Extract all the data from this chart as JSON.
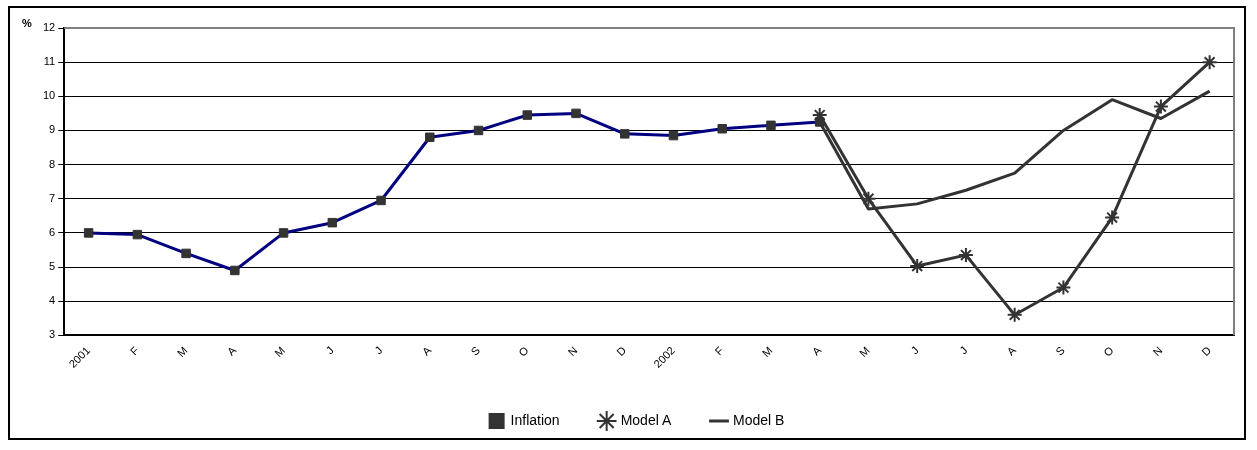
{
  "chart_data": {
    "type": "line",
    "ylabel": "%",
    "categories": [
      "2001",
      "F",
      "M",
      "A",
      "M",
      "J",
      "J",
      "A",
      "S",
      "O",
      "N",
      "D",
      "2002",
      "F",
      "M",
      "A",
      "M",
      "J",
      "J",
      "A",
      "S",
      "O",
      "N",
      "D"
    ],
    "series": [
      {
        "name": "Inflation",
        "color": "#000080",
        "marker": "square",
        "values": [
          6.0,
          5.95,
          5.4,
          4.9,
          6.0,
          6.3,
          6.95,
          8.8,
          9.0,
          9.45,
          9.5,
          8.9,
          8.85,
          9.05,
          9.15,
          9.25,
          null,
          null,
          null,
          null,
          null,
          null,
          null,
          null
        ]
      },
      {
        "name": "Model A",
        "color": "#333333",
        "marker": "cross",
        "values": [
          null,
          null,
          null,
          null,
          null,
          null,
          null,
          null,
          null,
          null,
          null,
          null,
          null,
          null,
          null,
          9.45,
          7.0,
          5.03,
          5.35,
          3.6,
          4.4,
          6.45,
          9.7,
          11.0
        ]
      },
      {
        "name": "Model B",
        "color": "#333333",
        "marker": "none",
        "values": [
          null,
          null,
          null,
          null,
          null,
          null,
          null,
          null,
          null,
          null,
          null,
          null,
          null,
          null,
          null,
          9.25,
          6.7,
          6.85,
          7.25,
          7.75,
          9.0,
          9.9,
          9.35,
          10.15
        ]
      }
    ],
    "ylim": [
      3,
      12
    ],
    "yticks": [
      3,
      4,
      5,
      6,
      7,
      8,
      9,
      10,
      11,
      12
    ],
    "grid": "y",
    "legend": "bottom",
    "line_style": "solid"
  }
}
